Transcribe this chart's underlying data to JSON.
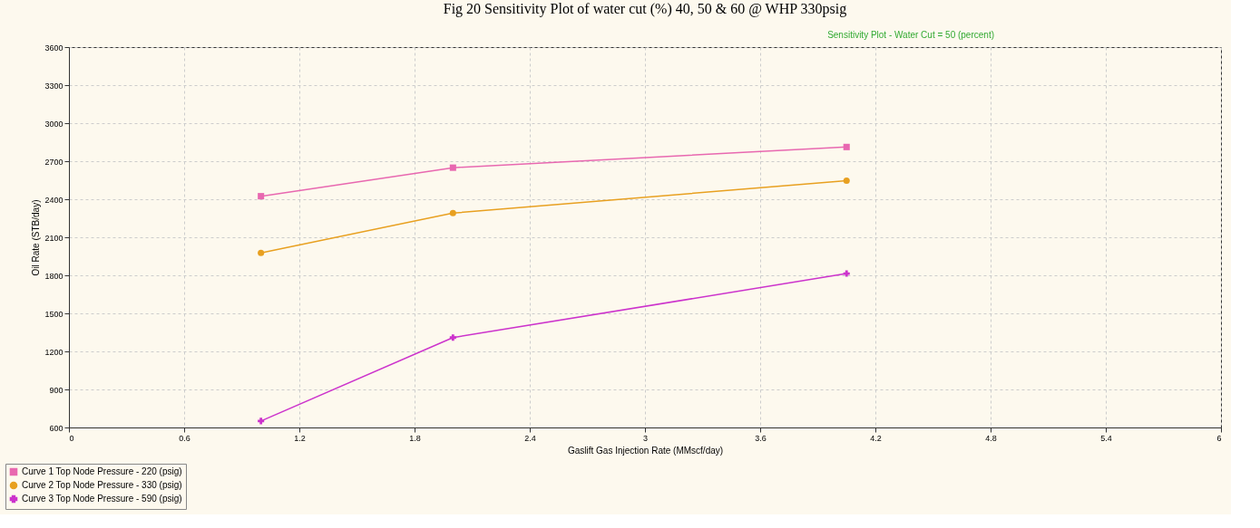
{
  "chart_data": {
    "type": "line",
    "title": "Fig 20 Sensitivity Plot of water cut (%) 40, 50 & 60 @ WHP 330psig",
    "subtitle": "Sensitivity Plot - Water Cut = 50 (percent)",
    "xlabel": "Gaslift Gas Injection Rate  (MMscf/day)",
    "ylabel": "Oil Rate  (STB/day)",
    "x": [
      1,
      2,
      4.05
    ],
    "series": [
      {
        "name": "Curve 1 Top Node Pressure - 220 (psig)",
        "color": "#e868b0",
        "marker": "square",
        "values": [
          2424,
          2649,
          2812
        ]
      },
      {
        "name": "Curve 2 Top Node Pressure - 330 (psig)",
        "color": "#e8a020",
        "marker": "circle",
        "values": [
          1977,
          2291,
          2547
        ]
      },
      {
        "name": "Curve 3 Top Node Pressure - 590 (psig)",
        "color": "#cc33cc",
        "marker": "cross",
        "values": [
          651,
          1309,
          1814
        ]
      }
    ],
    "xlim": [
      0,
      6
    ],
    "xticks": [
      0,
      0.6,
      1.2,
      1.8,
      2.4,
      3,
      3.6,
      4.2,
      4.8,
      5.4,
      6
    ],
    "ylim": [
      600,
      3600
    ],
    "yticks": [
      600,
      900,
      1200,
      1500,
      1800,
      2100,
      2400,
      2700,
      3000,
      3300,
      3600
    ],
    "grid": true,
    "legend": "bottom left",
    "line_style": "solid"
  }
}
